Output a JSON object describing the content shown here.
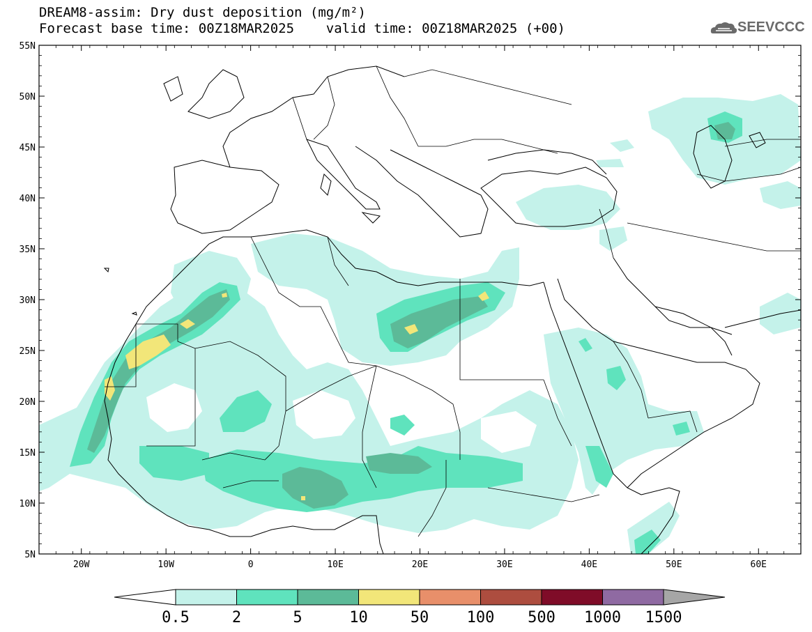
{
  "title": {
    "line1": "DREAM8-assim: Dry dust deposition (mg/m²)",
    "line2": "Forecast base time: 00Z18MAR2025    valid time: 00Z18MAR2025 (+00)"
  },
  "logo": {
    "text": "SEEVCCC",
    "icon": "cloud-icon"
  },
  "map": {
    "lon_range": [
      -25,
      65
    ],
    "lat_range": [
      5,
      55
    ],
    "lat_ticks": [
      "55N",
      "50N",
      "45N",
      "40N",
      "35N",
      "30N",
      "25N",
      "20N",
      "15N",
      "10N",
      "5N"
    ],
    "lon_ticks": [
      "20W",
      "10W",
      "0",
      "10E",
      "20E",
      "30E",
      "40E",
      "50E",
      "60E"
    ]
  },
  "legend": {
    "labels": [
      "0.5",
      "2",
      "5",
      "10",
      "50",
      "100",
      "500",
      "1000",
      "1500"
    ],
    "colors": [
      "#c4f2ea",
      "#5fe3bd",
      "#5cba98",
      "#f2e679",
      "#e88f6a",
      "#ad4d3f",
      "#7f0c28",
      "#8f6aa2"
    ],
    "under_color": "#ffffff",
    "over_color": "#a6a6a6"
  },
  "chart_data": {
    "type": "heatmap",
    "title": "DREAM8-assim: Dry dust deposition (mg/m²)",
    "units": "mg/m²",
    "levels": [
      0.5,
      2,
      5,
      10,
      50,
      100,
      500,
      1000,
      1500
    ],
    "x_range": [
      -25,
      65
    ],
    "y_range": [
      5,
      55
    ],
    "xticks": [
      "20W",
      "10W",
      "0",
      "10E",
      "20E",
      "30E",
      "40E",
      "50E",
      "60E"
    ],
    "yticks": [
      "55N",
      "50N",
      "45N",
      "40N",
      "35N",
      "30N",
      "25N",
      "20N",
      "15N",
      "10N",
      "5N"
    ]
  }
}
